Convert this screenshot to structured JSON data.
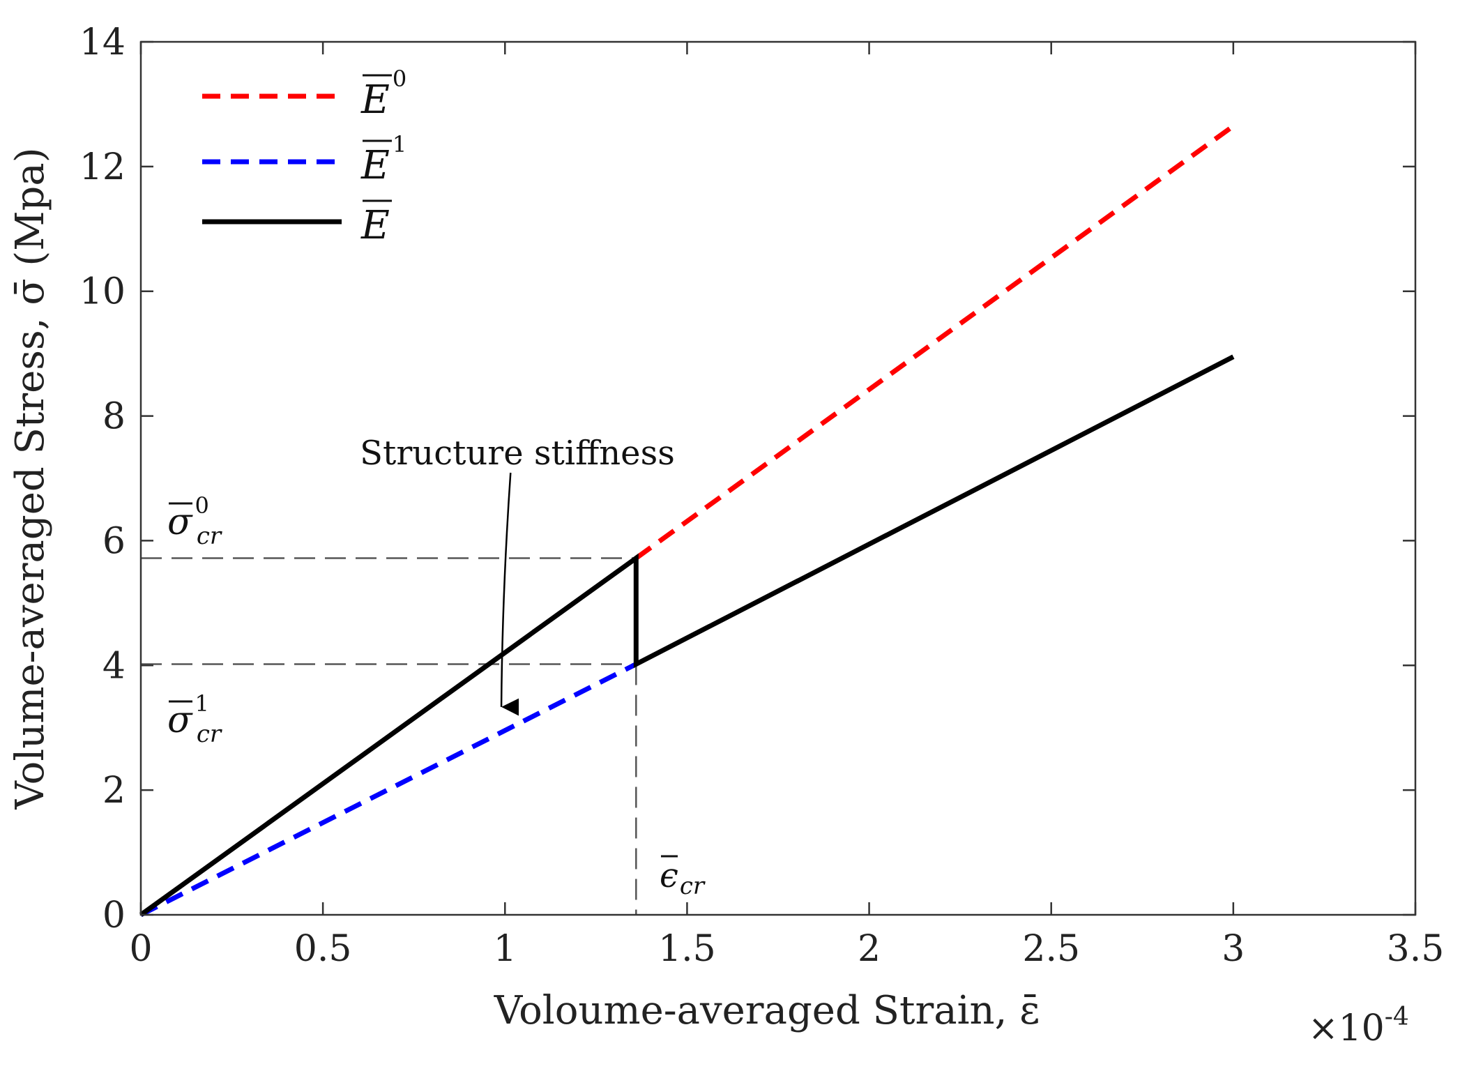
{
  "chart_data": {
    "type": "line",
    "title": "",
    "xlabel": "Voloume-averaged Strain, ε̄",
    "ylabel": "Volume-averaged Stress, σ̄ (Mpa)",
    "x_exponent_label": "×10",
    "x_exponent_power": "-4",
    "xlim": [
      0,
      3.5
    ],
    "ylim": [
      0,
      14
    ],
    "x_ticks": [
      0,
      0.5,
      1,
      1.5,
      2,
      2.5,
      3,
      3.5
    ],
    "x_tick_labels": [
      "0",
      "0.5",
      "1",
      "1.5",
      "2",
      "2.5",
      "3",
      "3.5"
    ],
    "y_ticks": [
      0,
      2,
      4,
      6,
      8,
      10,
      12,
      14
    ],
    "y_tick_labels": [
      "0",
      "2",
      "4",
      "6",
      "8",
      "10",
      "12",
      "14"
    ],
    "grid": false,
    "legend_position": "top-left",
    "series": [
      {
        "name": "E̅⁰",
        "label_base": "E",
        "label_sup": "0",
        "color": "#ff0000",
        "style": "dashed",
        "x": [
          1.36,
          3.0
        ],
        "y": [
          5.72,
          12.65
        ]
      },
      {
        "name": "E̅¹",
        "label_base": "E",
        "label_sup": "1",
        "color": "#0000ff",
        "style": "dashed",
        "x": [
          0,
          1.36
        ],
        "y": [
          0,
          4.02
        ]
      },
      {
        "name": "E̅",
        "label_base": "E",
        "label_sup": "",
        "color": "#000000",
        "style": "solid",
        "x": [
          0,
          1.36,
          1.36,
          3.0
        ],
        "y": [
          0,
          5.72,
          4.02,
          8.95
        ]
      }
    ],
    "reference_lines": {
      "sigma_cr0": 5.72,
      "sigma_cr1": 4.02,
      "epsilon_cr": 1.36,
      "color": "#555555"
    },
    "annotations": {
      "structure_stiffness": {
        "text": "Structure stiffness",
        "arrow_from": [
          1.0,
          4.22
        ],
        "arrow_to": [
          0.99,
          3.2
        ]
      },
      "sigma_cr0": {
        "base": "σ",
        "sup": "0",
        "sub": "cr"
      },
      "sigma_cr1": {
        "base": "σ",
        "sup": "1",
        "sub": "cr"
      },
      "epsilon_cr": {
        "base": "ϵ",
        "sub": "cr"
      }
    }
  }
}
